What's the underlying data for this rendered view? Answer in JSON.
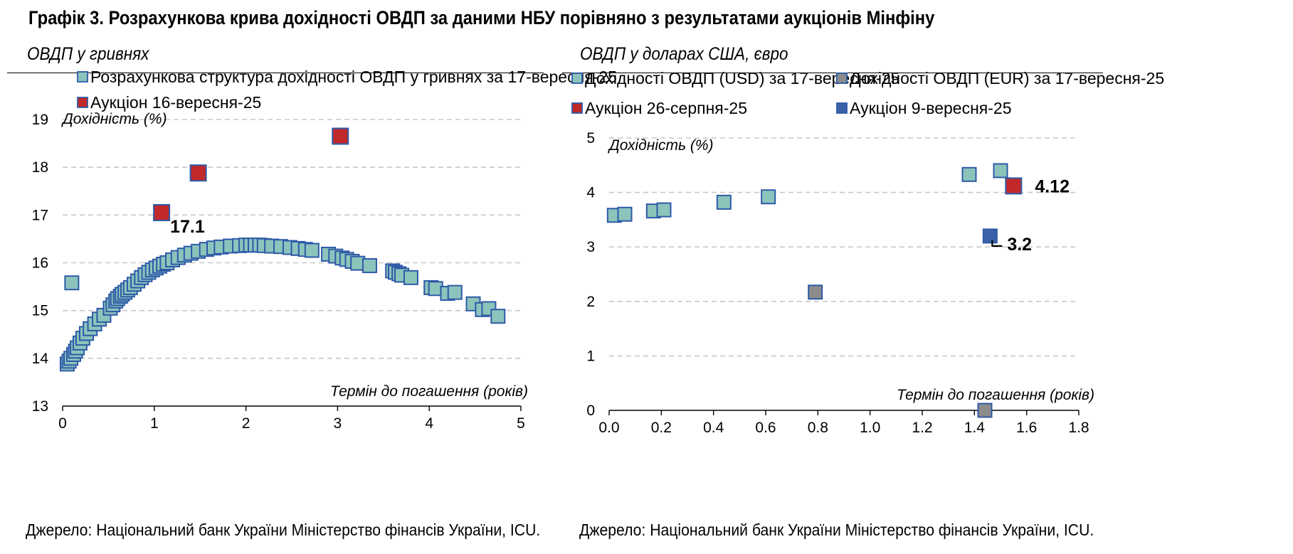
{
  "figure_title": "Графік 3. Розрахункова крива дохідності ОВДП за даними НБУ порівняно з результатами аукціонів Мінфіну",
  "colors": {
    "teal": "#8cc4bc",
    "red": "#c0282a",
    "blue": "#3b62a8",
    "gray": "#8c8c8c",
    "edge": "#2e5aa8",
    "grid": "#c8c8c8"
  },
  "chart_data": [
    {
      "type": "scatter",
      "panel_title": "ОВДП у гривнях",
      "ylabel": "Дохідність (%)",
      "xlabel": "Термін до погашення (років)",
      "xlim": [
        0,
        5
      ],
      "ylim": [
        13,
        19
      ],
      "xticks": [
        "0",
        "1",
        "2",
        "3",
        "4",
        "5"
      ],
      "yticks": [
        "13",
        "14",
        "15",
        "16",
        "17",
        "18",
        "19"
      ],
      "grid": "horizontal dashed",
      "legend": "top-left",
      "source": "Джерело: Національний банк України Міністерство фінансів України, ICU.",
      "series": [
        {
          "name": "Розрахункова структура дохідності ОВДП у гривнях за 17-вересня-25",
          "color": "teal",
          "points": [
            [
              0.05,
              13.88
            ],
            [
              0.07,
              13.94
            ],
            [
              0.09,
              14.0
            ],
            [
              0.1,
              15.58
            ],
            [
              0.12,
              14.08
            ],
            [
              0.14,
              14.15
            ],
            [
              0.16,
              14.22
            ],
            [
              0.19,
              14.32
            ],
            [
              0.22,
              14.42
            ],
            [
              0.26,
              14.52
            ],
            [
              0.3,
              14.62
            ],
            [
              0.35,
              14.72
            ],
            [
              0.4,
              14.82
            ],
            [
              0.45,
              14.9
            ],
            [
              0.52,
              15.05
            ],
            [
              0.55,
              15.12
            ],
            [
              0.58,
              15.2
            ],
            [
              0.6,
              15.25
            ],
            [
              0.63,
              15.3
            ],
            [
              0.65,
              15.34
            ],
            [
              0.68,
              15.38
            ],
            [
              0.71,
              15.43
            ],
            [
              0.74,
              15.48
            ],
            [
              0.78,
              15.55
            ],
            [
              0.82,
              15.62
            ],
            [
              0.86,
              15.69
            ],
            [
              0.9,
              15.75
            ],
            [
              0.94,
              15.8
            ],
            [
              0.98,
              15.85
            ],
            [
              1.02,
              15.89
            ],
            [
              1.06,
              15.93
            ],
            [
              1.1,
              15.97
            ],
            [
              1.14,
              16.0
            ],
            [
              1.2,
              16.06
            ],
            [
              1.26,
              16.11
            ],
            [
              1.33,
              16.16
            ],
            [
              1.4,
              16.2
            ],
            [
              1.48,
              16.24
            ],
            [
              1.57,
              16.28
            ],
            [
              1.65,
              16.31
            ],
            [
              1.73,
              16.33
            ],
            [
              1.83,
              16.35
            ],
            [
              1.93,
              16.36
            ],
            [
              2.0,
              16.37
            ],
            [
              2.05,
              16.37
            ],
            [
              2.1,
              16.37
            ],
            [
              2.15,
              16.37
            ],
            [
              2.2,
              16.36
            ],
            [
              2.28,
              16.35
            ],
            [
              2.38,
              16.34
            ],
            [
              2.48,
              16.32
            ],
            [
              2.57,
              16.3
            ],
            [
              2.65,
              16.28
            ],
            [
              2.72,
              16.26
            ],
            [
              2.9,
              16.18
            ],
            [
              2.98,
              16.14
            ],
            [
              3.05,
              16.1
            ],
            [
              3.1,
              16.07
            ],
            [
              3.16,
              16.03
            ],
            [
              3.22,
              15.99
            ],
            [
              3.35,
              15.94
            ],
            [
              3.6,
              15.83
            ],
            [
              3.63,
              15.8
            ],
            [
              3.67,
              15.77
            ],
            [
              3.7,
              15.74
            ],
            [
              3.8,
              15.69
            ],
            [
              4.02,
              15.48
            ],
            [
              4.07,
              15.46
            ],
            [
              4.2,
              15.36
            ],
            [
              4.28,
              15.38
            ],
            [
              4.48,
              15.14
            ],
            [
              4.58,
              15.02
            ],
            [
              4.65,
              15.04
            ],
            [
              4.75,
              14.88
            ]
          ]
        },
        {
          "name": "Аукціон 16-вересня-25",
          "color": "red",
          "points": [
            [
              1.08,
              17.05
            ],
            [
              1.48,
              17.88
            ],
            [
              3.03,
              18.65
            ]
          ]
        }
      ],
      "annotations": [
        {
          "text": "17.1",
          "x": 1.08,
          "y": 17.05
        }
      ]
    },
    {
      "type": "scatter",
      "panel_title": "ОВДП у доларах США, євро",
      "ylabel": "Дохідність (%)",
      "xlabel": "Термін до погашення (років)",
      "xlim": [
        0.0,
        1.8
      ],
      "ylim": [
        0,
        5
      ],
      "xticks": [
        "0.0",
        "0.2",
        "0.4",
        "0.6",
        "0.8",
        "1.0",
        "1.2",
        "1.4",
        "1.6",
        "1.8"
      ],
      "yticks": [
        "0",
        "1",
        "2",
        "3",
        "4",
        "5"
      ],
      "grid": "horizontal dashed",
      "legend": "top",
      "source": "Джерело: Національний банк України Міністерство фінансів України, ICU.",
      "series": [
        {
          "name": "Дохідності ОВДП (USD) за 17-вересня-25",
          "color": "teal",
          "points": [
            [
              0.02,
              3.58
            ],
            [
              0.06,
              3.6
            ],
            [
              0.17,
              3.66
            ],
            [
              0.21,
              3.68
            ],
            [
              0.44,
              3.82
            ],
            [
              0.61,
              3.92
            ],
            [
              1.38,
              4.33
            ],
            [
              1.5,
              4.4
            ]
          ]
        },
        {
          "name": "Дохідності ОВДП (EUR) за 17-вересня-25",
          "color": "gray",
          "points": [
            [
              0.79,
              2.17
            ],
            [
              1.44,
              0.0
            ]
          ]
        },
        {
          "name": "Аукціон 26-серпня-25",
          "color": "red",
          "points": [
            [
              1.55,
              4.12
            ]
          ]
        },
        {
          "name": "Аукціон 9-вересня-25",
          "color": "blue",
          "points": [
            [
              1.46,
              3.2
            ]
          ]
        }
      ],
      "annotations": [
        {
          "text": "4.12",
          "x": 1.55,
          "y": 4.12
        },
        {
          "text": "3.2",
          "x": 1.46,
          "y": 3.2
        }
      ]
    }
  ]
}
